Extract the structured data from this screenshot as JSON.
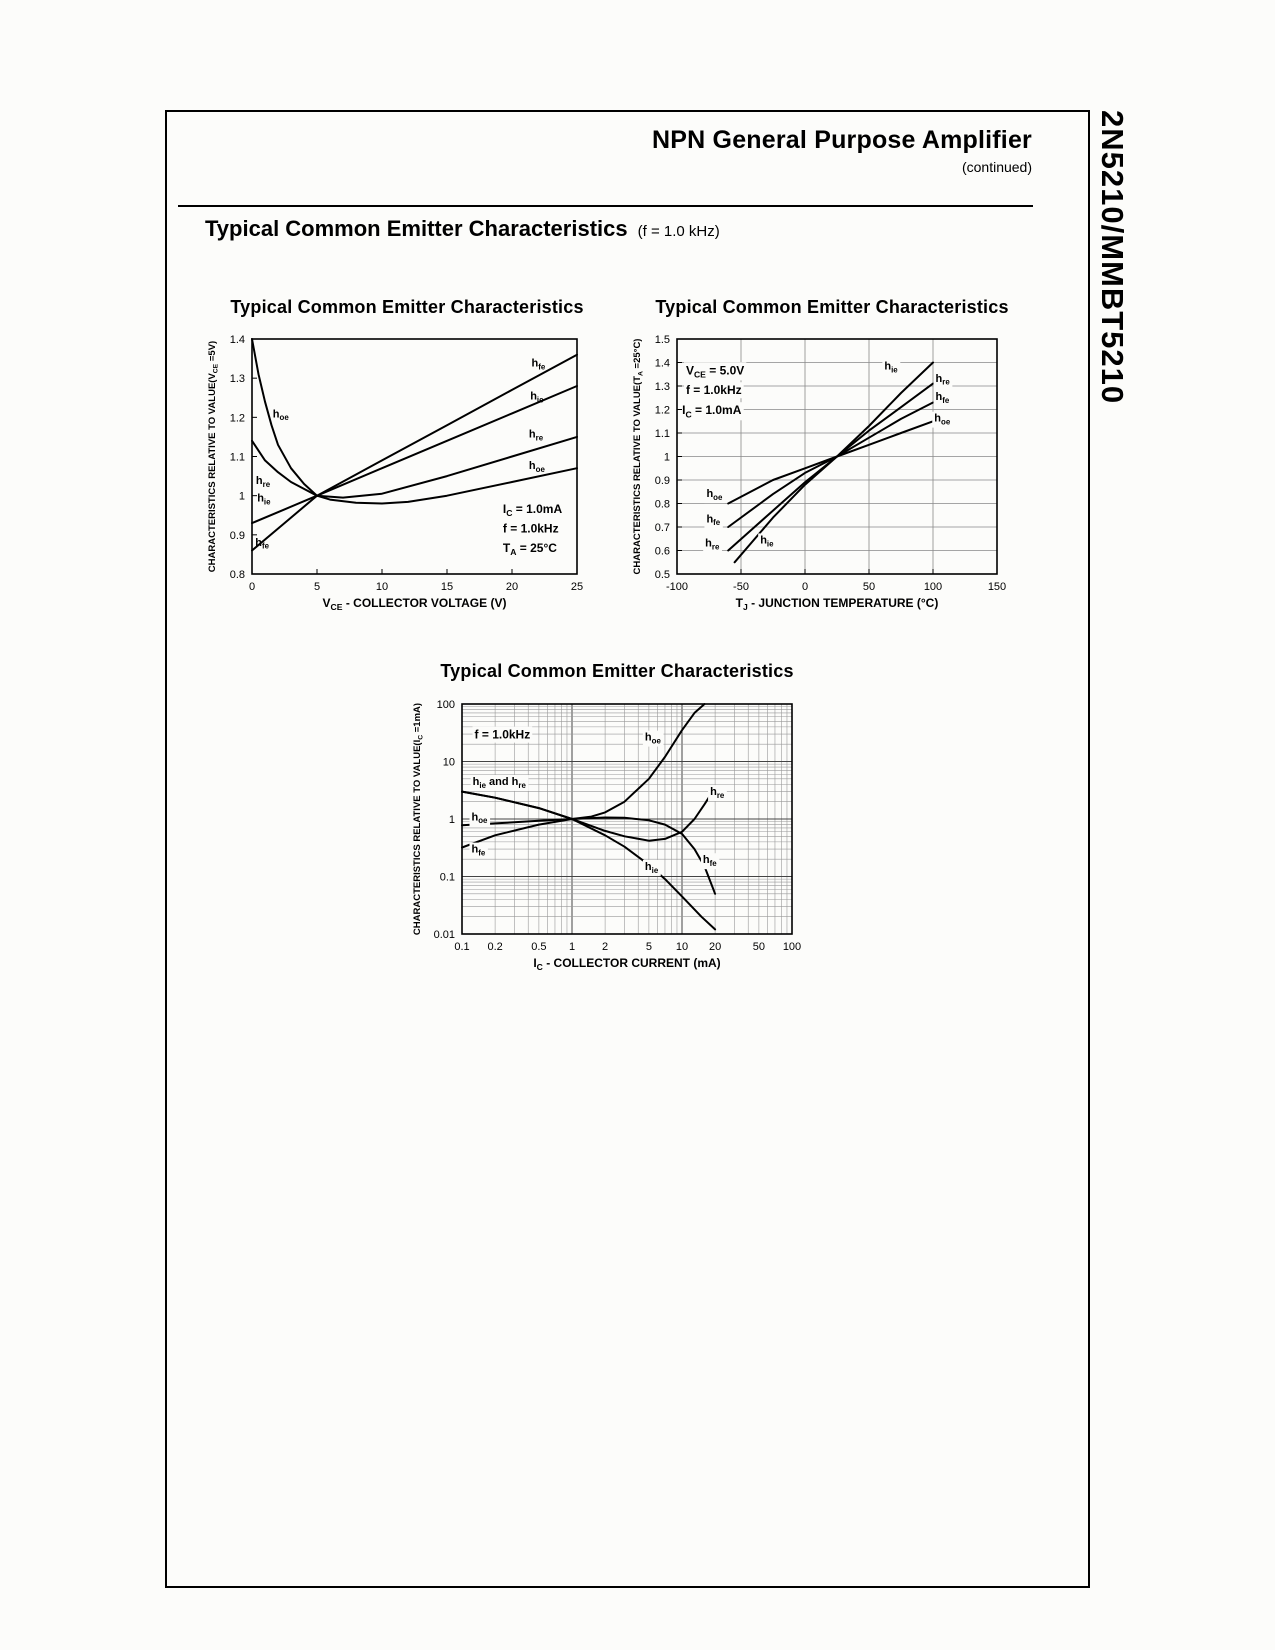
{
  "page": {
    "side_title": "2N5210/MMBT5210",
    "header_title": "NPN General Purpose Amplifier",
    "header_subtitle": "(continued)",
    "section_title": "Typical Common Emitter Characteristics",
    "section_subtitle": "(f = 1.0 kHz)"
  },
  "chart_data": [
    {
      "type": "line",
      "title": "Typical Common Emitter Characteristics",
      "xlabel": "V_{CE} - COLLECTOR VOLTAGE (V)",
      "ylabel": "CHARACTERISTICS RELATIVE TO VALUE(V_{CE} =5V)",
      "xscale": "linear",
      "yscale": "linear",
      "xlim": [
        0,
        25
      ],
      "ylim": [
        0.8,
        1.4
      ],
      "x_ticks": [
        [
          0,
          "0"
        ],
        [
          5,
          "5"
        ],
        [
          10,
          "10"
        ],
        [
          15,
          "15"
        ],
        [
          20,
          "20"
        ],
        [
          25,
          "25"
        ]
      ],
      "y_ticks": [
        [
          0.8,
          "0.8"
        ],
        [
          0.9,
          "0.9"
        ],
        [
          1,
          "1"
        ],
        [
          1.1,
          "1.1"
        ],
        [
          1.2,
          "1.2"
        ],
        [
          1.3,
          "1.3"
        ],
        [
          1.4,
          "1.4"
        ]
      ],
      "grid": "none",
      "series": [
        {
          "name": "h_fe",
          "x": [
            0,
            2.5,
            5,
            10,
            15,
            20,
            25
          ],
          "y": [
            0.86,
            0.93,
            1.0,
            1.09,
            1.18,
            1.27,
            1.36
          ]
        },
        {
          "name": "h_ie",
          "x": [
            0,
            2.5,
            5,
            10,
            15,
            20,
            25
          ],
          "y": [
            0.93,
            0.965,
            1.0,
            1.07,
            1.14,
            1.21,
            1.28
          ]
        },
        {
          "name": "h_re",
          "x": [
            0,
            1,
            2,
            3,
            5,
            7,
            10,
            15,
            20,
            25
          ],
          "y": [
            1.14,
            1.09,
            1.06,
            1.035,
            1.0,
            0.995,
            1.005,
            1.05,
            1.1,
            1.15
          ]
        },
        {
          "name": "h_oe",
          "x": [
            0,
            0.5,
            1,
            1.5,
            2,
            3,
            4,
            5,
            6,
            8,
            10,
            12,
            15,
            20,
            25
          ],
          "y": [
            1.4,
            1.31,
            1.24,
            1.18,
            1.13,
            1.07,
            1.03,
            1.0,
            0.99,
            0.982,
            0.98,
            0.984,
            1.0,
            1.035,
            1.07
          ]
        }
      ],
      "curve_labels": [
        {
          "t": "h_{oe}",
          "x": 1.6,
          "y": 1.2
        },
        {
          "t": "h_{re}",
          "x": 0.3,
          "y": 1.03
        },
        {
          "t": "h_{ie}",
          "x": 0.4,
          "y": 0.985
        },
        {
          "t": "h_{fe}",
          "x": 0.25,
          "y": 0.872
        },
        {
          "t": "h_{fe}",
          "x": 21.5,
          "y": 1.33
        },
        {
          "t": "h_{ie}",
          "x": 21.4,
          "y": 1.245
        },
        {
          "t": "h_{re}",
          "x": 21.3,
          "y": 1.148
        },
        {
          "t": "h_{oe}",
          "x": 21.3,
          "y": 1.068
        }
      ],
      "annotations": [
        {
          "t": "I_{C} = 1.0mA",
          "x": 19.3,
          "y": 0.956
        },
        {
          "t": "f = 1.0kHz",
          "x": 19.3,
          "y": 0.906
        },
        {
          "t": "T_{A} = 25°C",
          "x": 19.3,
          "y": 0.856
        }
      ]
    },
    {
      "type": "line",
      "title": "Typical Common Emitter Characteristics",
      "xlabel": "T_{J} - JUNCTION TEMPERATURE (°C)",
      "ylabel": "CHARACTERISTICS RELATIVE TO VALUE(T_{A} =25°C)",
      "xscale": "linear",
      "yscale": "linear",
      "xlim": [
        -100,
        150
      ],
      "ylim": [
        0.5,
        1.5
      ],
      "x_ticks": [
        [
          -100,
          "-100"
        ],
        [
          -50,
          "-50"
        ],
        [
          0,
          "0"
        ],
        [
          50,
          "50"
        ],
        [
          100,
          "100"
        ],
        [
          150,
          "150"
        ]
      ],
      "y_ticks": [
        [
          0.5,
          "0.5"
        ],
        [
          0.6,
          "0.6"
        ],
        [
          0.7,
          "0.7"
        ],
        [
          0.8,
          "0.8"
        ],
        [
          0.9,
          "0.9"
        ],
        [
          1,
          "1"
        ],
        [
          1.1,
          "1.1"
        ],
        [
          1.2,
          "1.2"
        ],
        [
          1.3,
          "1.3"
        ],
        [
          1.4,
          "1.4"
        ],
        [
          1.5,
          "1.5"
        ]
      ],
      "grid": "major",
      "series": [
        {
          "name": "h_ie",
          "x": [
            -55,
            -25,
            0,
            25,
            50,
            75,
            100
          ],
          "y": [
            0.55,
            0.74,
            0.88,
            1.0,
            1.13,
            1.27,
            1.4
          ]
        },
        {
          "name": "h_re",
          "x": [
            -60,
            -25,
            0,
            25,
            50,
            75,
            100
          ],
          "y": [
            0.6,
            0.77,
            0.89,
            1.0,
            1.11,
            1.21,
            1.31
          ]
        },
        {
          "name": "h_fe",
          "x": [
            -60,
            -25,
            0,
            25,
            50,
            75,
            100
          ],
          "y": [
            0.7,
            0.84,
            0.93,
            1.0,
            1.08,
            1.16,
            1.23
          ]
        },
        {
          "name": "h_oe",
          "x": [
            -60,
            -25,
            0,
            25,
            50,
            75,
            100
          ],
          "y": [
            0.8,
            0.9,
            0.95,
            1.0,
            1.05,
            1.1,
            1.15
          ]
        }
      ],
      "curve_labels": [
        {
          "t": "h_{ie}",
          "x": 62,
          "y": 1.37
        },
        {
          "t": "h_{re}",
          "x": 102,
          "y": 1.318
        },
        {
          "t": "h_{fe}",
          "x": 102,
          "y": 1.24
        },
        {
          "t": "h_{oe}",
          "x": 101,
          "y": 1.148
        },
        {
          "t": "h_{oe}",
          "x": -77,
          "y": 0.827
        },
        {
          "t": "h_{fe}",
          "x": -77,
          "y": 0.72
        },
        {
          "t": "h_{re}",
          "x": -78,
          "y": 0.617
        },
        {
          "t": "h_{ie}",
          "x": -35,
          "y": 0.63
        }
      ],
      "annotations": [
        {
          "t": "V_{CE} = 5.0V",
          "x": -93,
          "y": 1.35
        },
        {
          "t": "f = 1.0kHz",
          "x": -93,
          "y": 1.265
        },
        {
          "t": "I_{C} = 1.0mA",
          "x": -96,
          "y": 1.18
        }
      ]
    },
    {
      "type": "line",
      "title": "Typical Common Emitter Characteristics",
      "xlabel": "I_{C} - COLLECTOR CURRENT (mA)",
      "ylabel": "CHARACTERISTICS RELATIVE TO VALUE(I_{C} =1mA)",
      "xscale": "log",
      "yscale": "log",
      "xlim": [
        0.1,
        100
      ],
      "ylim": [
        0.01,
        100
      ],
      "x_ticks": [
        [
          0.1,
          "0.1"
        ],
        [
          0.2,
          "0.2"
        ],
        [
          0.5,
          "0.5"
        ],
        [
          1,
          "1"
        ],
        [
          2,
          "2"
        ],
        [
          5,
          "5"
        ],
        [
          10,
          "10"
        ],
        [
          20,
          "20"
        ],
        [
          50,
          "50"
        ],
        [
          100,
          "100"
        ]
      ],
      "y_ticks": [
        [
          0.01,
          "0.01"
        ],
        [
          0.1,
          "0.1"
        ],
        [
          1,
          "1"
        ],
        [
          10,
          "10"
        ],
        [
          100,
          "100"
        ]
      ],
      "grid": "log",
      "series": [
        {
          "name": "h_oe",
          "x": [
            0.1,
            0.2,
            0.5,
            1,
            1.5,
            2,
            3,
            5,
            7,
            10,
            13,
            16
          ],
          "y": [
            0.78,
            0.84,
            0.93,
            1.0,
            1.1,
            1.3,
            2.0,
            5.0,
            12,
            35,
            70,
            100
          ]
        },
        {
          "name": "h_re",
          "x": [
            0.1,
            0.2,
            0.5,
            1,
            2,
            3,
            5,
            7,
            10,
            13,
            16,
            20
          ],
          "y": [
            3.0,
            2.35,
            1.55,
            1.0,
            0.62,
            0.5,
            0.42,
            0.45,
            0.6,
            1.0,
            1.8,
            3.5
          ]
        },
        {
          "name": "h_ie",
          "x": [
            0.1,
            0.2,
            0.5,
            1,
            2,
            3,
            5,
            7,
            10,
            15,
            20
          ],
          "y": [
            3.0,
            2.35,
            1.55,
            1.0,
            0.52,
            0.33,
            0.16,
            0.09,
            0.045,
            0.02,
            0.012
          ]
        },
        {
          "name": "h_fe",
          "x": [
            0.1,
            0.2,
            0.5,
            1,
            2,
            3,
            5,
            7,
            10,
            13,
            16,
            20
          ],
          "y": [
            0.32,
            0.52,
            0.8,
            1.0,
            1.06,
            1.05,
            0.95,
            0.8,
            0.55,
            0.3,
            0.15,
            0.05
          ]
        }
      ],
      "curve_labels": [
        {
          "t": "h_{oe}",
          "x": 4.6,
          "y": 23
        },
        {
          "t": "h_{re}",
          "x": 18,
          "y": 2.6
        },
        {
          "t": "h_{ie} and h_{re}",
          "x": 0.125,
          "y": 3.9
        },
        {
          "t": "h_{oe}",
          "x": 0.122,
          "y": 0.95
        },
        {
          "t": "h_{fe}",
          "x": 0.122,
          "y": 0.26
        },
        {
          "t": "h_{ie}",
          "x": 4.6,
          "y": 0.13
        },
        {
          "t": "h_{fe}",
          "x": 15.5,
          "y": 0.17
        }
      ],
      "annotations": [
        {
          "t": "f = 1.0kHz",
          "x": 0.13,
          "y": 25
        }
      ]
    }
  ]
}
